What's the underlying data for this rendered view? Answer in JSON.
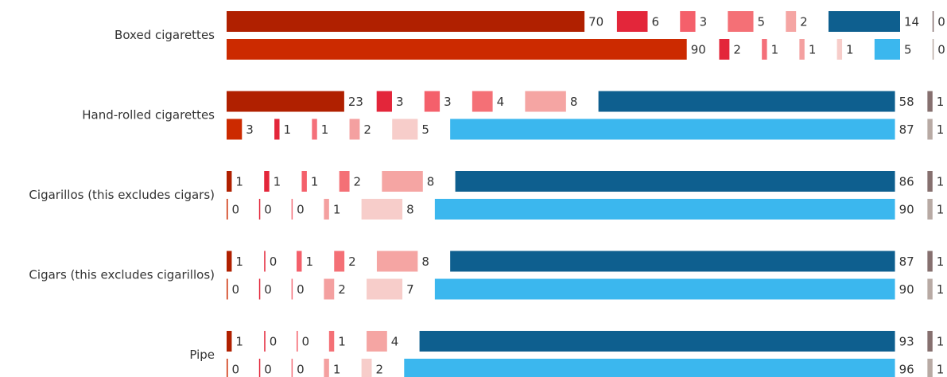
{
  "chart_data": {
    "type": "bar",
    "categories": [
      "Boxed cigarettes",
      "Hand-rolled cigarettes",
      "Cigarillos (this excludes cigars)",
      "Cigars (this excludes cigarillos)",
      "Pipe"
    ],
    "series": [
      {
        "colors": [
          "#b02000",
          "#e3263a",
          "#f4606b",
          "#f47076",
          "#f5a5a3",
          "#0e5f8f",
          "#86706f"
        ],
        "values": [
          [
            70,
            6,
            3,
            5,
            2,
            14,
            0
          ],
          [
            23,
            3,
            3,
            4,
            8,
            58,
            1
          ],
          [
            1,
            1,
            1,
            2,
            8,
            86,
            1
          ],
          [
            1,
            0,
            1,
            2,
            8,
            87,
            1
          ],
          [
            1,
            0,
            0,
            1,
            4,
            93,
            1
          ]
        ]
      },
      {
        "colors": [
          "#cc2a00",
          "#e3263a",
          "#f4707a",
          "#f4a0a0",
          "#f7cdca",
          "#3bb7ee",
          "#b8aaa4"
        ],
        "values": [
          [
            90,
            2,
            1,
            1,
            1,
            5,
            0
          ],
          [
            3,
            1,
            1,
            2,
            5,
            87,
            1
          ],
          [
            0,
            0,
            0,
            1,
            8,
            90,
            1
          ],
          [
            0,
            0,
            0,
            2,
            7,
            90,
            1
          ],
          [
            0,
            0,
            0,
            1,
            2,
            96,
            1
          ]
        ]
      }
    ]
  }
}
